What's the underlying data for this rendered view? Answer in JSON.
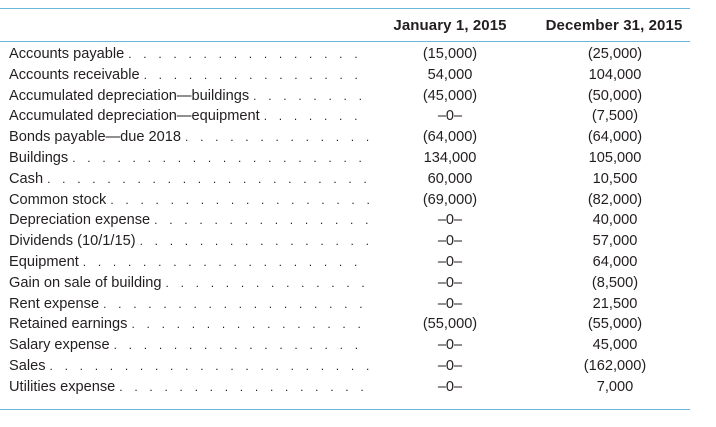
{
  "header": {
    "col1": "January 1, 2015",
    "col2": "December 31, 2015"
  },
  "rows": [
    {
      "label": "Accounts payable",
      "jan": "(15,000)",
      "dec": "(25,000)"
    },
    {
      "label": "Accounts receivable",
      "jan": "54,000",
      "dec": "104,000"
    },
    {
      "label": "Accumulated depreciation—buildings",
      "jan": "(45,000)",
      "dec": "(50,000)"
    },
    {
      "label": "Accumulated depreciation—equipment",
      "jan": "–0–",
      "dec": "(7,500)"
    },
    {
      "label": "Bonds payable—due 2018",
      "jan": "(64,000)",
      "dec": "(64,000)"
    },
    {
      "label": "Buildings",
      "jan": "134,000",
      "dec": "105,000"
    },
    {
      "label": "Cash",
      "jan": "60,000",
      "dec": "10,500"
    },
    {
      "label": "Common stock",
      "jan": "(69,000)",
      "dec": "(82,000)"
    },
    {
      "label": "Depreciation expense",
      "jan": "–0–",
      "dec": "40,000"
    },
    {
      "label": "Dividends (10/1/15)",
      "jan": "–0–",
      "dec": "57,000"
    },
    {
      "label": "Equipment",
      "jan": "–0–",
      "dec": "64,000"
    },
    {
      "label": "Gain on sale of building",
      "jan": "–0–",
      "dec": "(8,500)"
    },
    {
      "label": "Rent expense",
      "jan": "–0–",
      "dec": "21,500"
    },
    {
      "label": "Retained earnings",
      "jan": "(55,000)",
      "dec": "(55,000)"
    },
    {
      "label": "Salary expense",
      "jan": "–0–",
      "dec": "45,000"
    },
    {
      "label": "Sales",
      "jan": "–0–",
      "dec": "(162,000)"
    },
    {
      "label": "Utilities expense",
      "jan": "–0–",
      "dec": "7,000"
    }
  ],
  "colors": {
    "rule": "#6bb8d6",
    "text": "#231f20"
  }
}
